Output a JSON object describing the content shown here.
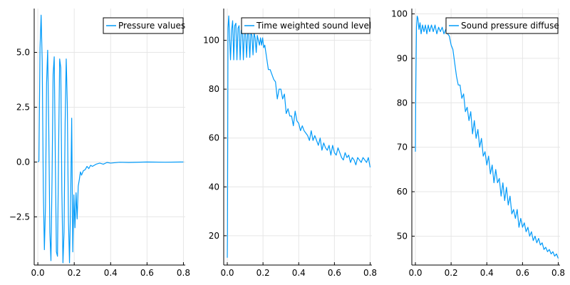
{
  "colors": {
    "series": "#009af9",
    "grid": "#e6e6e6",
    "axis": "#000000"
  },
  "chart_data": [
    {
      "type": "line",
      "grid": true,
      "legend_position": "top-right",
      "xlim": [
        -0.02,
        0.81
      ],
      "ylim": [
        -4.7,
        7.0
      ],
      "x_ticks": [
        0.0,
        0.2,
        0.4,
        0.6,
        0.8
      ],
      "x_tick_labels": [
        "0.0",
        "0.2",
        "0.4",
        "0.6",
        "0.8"
      ],
      "y_ticks": [
        -2.5,
        0.0,
        2.5,
        5.0
      ],
      "y_tick_labels": [
        "−2.5",
        "0.0",
        "2.5",
        "5.0"
      ],
      "series": [
        {
          "name": "Pressure values",
          "x": [
            0.0,
            0.006,
            0.012,
            0.018,
            0.024,
            0.03,
            0.036,
            0.042,
            0.048,
            0.054,
            0.06,
            0.066,
            0.072,
            0.078,
            0.084,
            0.09,
            0.096,
            0.102,
            0.108,
            0.114,
            0.12,
            0.126,
            0.132,
            0.138,
            0.144,
            0.15,
            0.156,
            0.162,
            0.168,
            0.174,
            0.18,
            0.186,
            0.192,
            0.198,
            0.204,
            0.21,
            0.216,
            0.222,
            0.228,
            0.234,
            0.24,
            0.25,
            0.26,
            0.27,
            0.28,
            0.29,
            0.3,
            0.32,
            0.34,
            0.36,
            0.38,
            0.4,
            0.45,
            0.5,
            0.6,
            0.7,
            0.8
          ],
          "y": [
            0.0,
            0.05,
            5.2,
            6.7,
            4.6,
            -1.2,
            -4.0,
            -2.0,
            3.6,
            5.1,
            1.6,
            -3.2,
            -4.5,
            -0.8,
            4.0,
            4.8,
            0.2,
            -4.1,
            -4.3,
            0.5,
            4.7,
            4.3,
            -1.3,
            -4.6,
            -3.2,
            1.8,
            4.7,
            2.6,
            -2.6,
            -4.6,
            -1.9,
            2.0,
            -4.1,
            -1.5,
            -3.0,
            -1.4,
            -2.6,
            -1.1,
            -0.8,
            -0.45,
            -0.6,
            -0.4,
            -0.35,
            -0.2,
            -0.3,
            -0.15,
            -0.2,
            -0.1,
            -0.05,
            -0.1,
            -0.02,
            -0.05,
            -0.01,
            -0.02,
            0.0,
            -0.01,
            0.0
          ]
        }
      ]
    },
    {
      "type": "line",
      "grid": true,
      "legend_position": "top-right",
      "xlim": [
        -0.02,
        0.81
      ],
      "ylim": [
        8.0,
        113.0
      ],
      "x_ticks": [
        0.0,
        0.2,
        0.4,
        0.6,
        0.8
      ],
      "x_tick_labels": [
        "0.0",
        "0.2",
        "0.4",
        "0.6",
        "0.8"
      ],
      "y_ticks": [
        20,
        40,
        60,
        80,
        100
      ],
      "y_tick_labels": [
        "20",
        "40",
        "60",
        "80",
        "100"
      ],
      "series": [
        {
          "name": "Time weighted sound level",
          "x": [
            0.0,
            0.001,
            0.004,
            0.008,
            0.012,
            0.018,
            0.024,
            0.03,
            0.036,
            0.042,
            0.048,
            0.054,
            0.06,
            0.066,
            0.072,
            0.078,
            0.084,
            0.09,
            0.096,
            0.102,
            0.108,
            0.114,
            0.12,
            0.126,
            0.132,
            0.138,
            0.144,
            0.15,
            0.156,
            0.162,
            0.168,
            0.174,
            0.18,
            0.186,
            0.192,
            0.198,
            0.204,
            0.21,
            0.22,
            0.23,
            0.24,
            0.25,
            0.26,
            0.27,
            0.28,
            0.29,
            0.3,
            0.31,
            0.32,
            0.33,
            0.34,
            0.35,
            0.36,
            0.37,
            0.38,
            0.39,
            0.4,
            0.41,
            0.42,
            0.43,
            0.44,
            0.45,
            0.46,
            0.47,
            0.48,
            0.49,
            0.5,
            0.51,
            0.52,
            0.53,
            0.54,
            0.55,
            0.56,
            0.57,
            0.58,
            0.59,
            0.6,
            0.61,
            0.62,
            0.63,
            0.64,
            0.65,
            0.66,
            0.67,
            0.68,
            0.69,
            0.7,
            0.71,
            0.72,
            0.73,
            0.74,
            0.75,
            0.76,
            0.77,
            0.78,
            0.79,
            0.8
          ],
          "y": [
            11,
            20,
            105,
            110,
            103,
            92,
            104,
            108,
            92,
            106,
            107,
            92,
            105,
            106,
            92,
            104,
            105,
            92,
            104,
            104,
            93,
            103,
            103,
            93,
            103,
            102,
            94,
            103,
            101,
            95,
            102,
            100,
            98,
            101,
            98,
            101,
            97,
            98,
            93,
            88,
            88,
            86,
            84,
            83,
            76,
            80,
            80,
            76,
            78,
            70,
            72,
            69,
            69,
            65,
            71,
            67,
            66,
            63,
            65,
            63,
            62,
            61,
            59,
            63,
            59,
            61,
            59,
            57,
            60,
            55,
            58,
            56,
            55,
            57,
            53,
            57,
            54,
            53,
            56,
            54,
            52,
            51,
            54,
            52,
            53,
            50,
            52,
            51,
            49,
            52,
            51,
            50,
            52,
            51,
            50,
            52,
            48
          ]
        }
      ]
    },
    {
      "type": "line",
      "grid": true,
      "legend_position": "top-right",
      "xlim": [
        -0.02,
        0.81
      ],
      "ylim": [
        43.5,
        101.2
      ],
      "x_ticks": [
        0.0,
        0.2,
        0.4,
        0.6,
        0.8
      ],
      "x_tick_labels": [
        "0.0",
        "0.2",
        "0.4",
        "0.6",
        "0.8"
      ],
      "y_ticks": [
        50,
        60,
        70,
        80,
        90,
        100
      ],
      "y_tick_labels": [
        "50",
        "60",
        "70",
        "80",
        "90",
        "100"
      ],
      "series": [
        {
          "name": "Sound pressure diffuse",
          "x": [
            0.0,
            0.002,
            0.006,
            0.01,
            0.014,
            0.02,
            0.026,
            0.032,
            0.04,
            0.048,
            0.056,
            0.064,
            0.072,
            0.08,
            0.09,
            0.1,
            0.11,
            0.12,
            0.13,
            0.14,
            0.15,
            0.16,
            0.17,
            0.18,
            0.19,
            0.2,
            0.21,
            0.22,
            0.23,
            0.24,
            0.25,
            0.26,
            0.27,
            0.28,
            0.29,
            0.3,
            0.31,
            0.32,
            0.33,
            0.34,
            0.35,
            0.36,
            0.37,
            0.38,
            0.39,
            0.4,
            0.41,
            0.42,
            0.43,
            0.44,
            0.45,
            0.46,
            0.47,
            0.48,
            0.49,
            0.5,
            0.51,
            0.52,
            0.53,
            0.54,
            0.55,
            0.56,
            0.57,
            0.58,
            0.59,
            0.6,
            0.61,
            0.62,
            0.63,
            0.64,
            0.65,
            0.66,
            0.67,
            0.68,
            0.69,
            0.7,
            0.71,
            0.72,
            0.73,
            0.74,
            0.75,
            0.76,
            0.77,
            0.78,
            0.79,
            0.8
          ],
          "y": [
            69,
            82,
            97,
            99.5,
            99,
            96.5,
            98,
            95.5,
            97.5,
            96,
            97.5,
            95.5,
            97.5,
            96,
            97.5,
            96,
            97.5,
            95.5,
            97,
            96,
            97,
            95.5,
            96.5,
            95.5,
            95,
            93,
            92,
            89,
            86,
            84,
            84,
            81,
            82,
            78,
            79,
            76,
            78,
            73,
            76,
            72,
            74,
            70,
            72,
            68,
            69,
            66,
            68,
            64,
            66,
            62,
            65,
            62,
            63,
            59,
            62,
            58,
            61,
            57,
            59,
            55,
            56,
            54,
            56,
            52,
            54,
            52,
            53,
            51,
            52,
            50,
            51,
            49,
            50,
            48.5,
            49.5,
            48,
            48.5,
            47,
            47.5,
            46.5,
            47,
            46,
            46.5,
            45.5,
            46,
            45
          ]
        }
      ]
    }
  ]
}
